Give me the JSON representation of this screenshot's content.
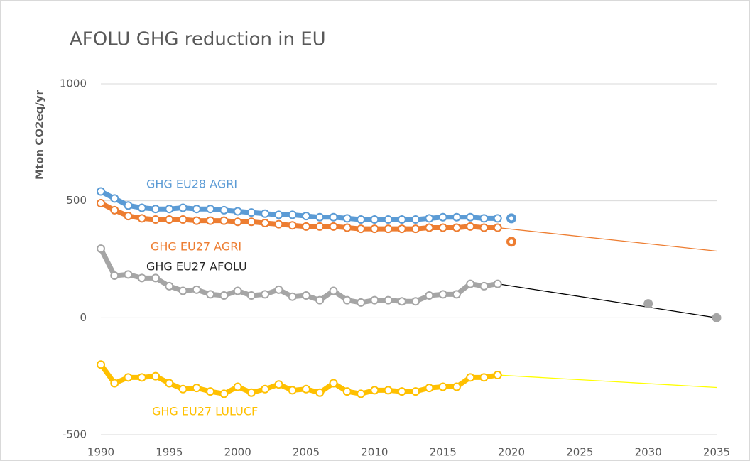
{
  "chart_data": {
    "type": "line",
    "title": "AFOLU GHG reduction in EU",
    "y_label": "Mton CO2eq/yr",
    "x": [
      1990,
      1991,
      1992,
      1993,
      1994,
      1995,
      1996,
      1997,
      1998,
      1999,
      2000,
      2001,
      2002,
      2003,
      2004,
      2005,
      2006,
      2007,
      2008,
      2009,
      2010,
      2011,
      2012,
      2013,
      2014,
      2015,
      2016,
      2017,
      2018,
      2019
    ],
    "xlim": [
      1990,
      2035
    ],
    "xticks": [
      1990,
      1995,
      2000,
      2005,
      2010,
      2015,
      2020,
      2025,
      2030,
      2035
    ],
    "ylim": [
      -500,
      1000
    ],
    "yticks": [
      -500,
      0,
      500,
      1000
    ],
    "grid": true,
    "series": [
      {
        "name": "GHG EU28 AGRI",
        "color": "#5b9bd5",
        "values": [
          540,
          510,
          480,
          470,
          465,
          465,
          470,
          465,
          465,
          460,
          455,
          450,
          445,
          440,
          440,
          435,
          430,
          430,
          425,
          420,
          420,
          420,
          420,
          420,
          425,
          430,
          430,
          430,
          425,
          425
        ],
        "markers": [
          {
            "x": 2020,
            "value": 425
          }
        ]
      },
      {
        "name": "GHG EU27 AGRI",
        "color": "#ed7d31",
        "values": [
          490,
          460,
          435,
          425,
          420,
          420,
          420,
          415,
          415,
          415,
          410,
          410,
          405,
          400,
          395,
          390,
          390,
          390,
          385,
          380,
          380,
          380,
          380,
          380,
          385,
          385,
          385,
          390,
          385,
          385
        ],
        "projection": {
          "x": 2035,
          "value": 285,
          "color": "#ed7d31"
        },
        "markers": [
          {
            "x": 2020,
            "value": 325
          }
        ]
      },
      {
        "name": "GHG EU27 AFOLU",
        "color": "#a5a5a5",
        "values": [
          295,
          180,
          185,
          170,
          170,
          135,
          115,
          120,
          100,
          95,
          115,
          95,
          100,
          120,
          90,
          95,
          75,
          115,
          75,
          65,
          75,
          75,
          70,
          70,
          95,
          100,
          100,
          145,
          135,
          145
        ],
        "projection": {
          "x": 2035,
          "value": 0,
          "color": "#000000"
        },
        "markers": [
          {
            "x": 2030,
            "value": 60
          },
          {
            "x": 2035,
            "value": 0
          }
        ]
      },
      {
        "name": "GHG EU27 LULUCF",
        "color": "#ffc000",
        "values": [
          -200,
          -280,
          -255,
          -255,
          -250,
          -280,
          -305,
          -300,
          -315,
          -325,
          -295,
          -320,
          -305,
          -285,
          -310,
          -305,
          -320,
          -280,
          -315,
          -325,
          -310,
          -310,
          -315,
          -315,
          -300,
          -295,
          -295,
          -255,
          -255,
          -245
        ],
        "projection": {
          "x": 2035,
          "value": -298,
          "color": "#ffff00"
        }
      }
    ]
  }
}
